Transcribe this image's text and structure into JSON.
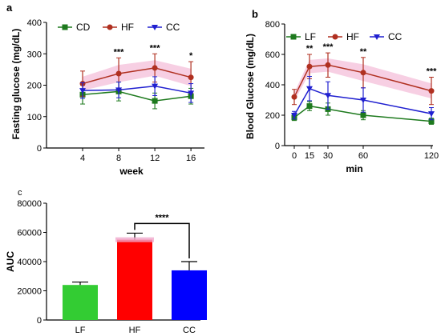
{
  "colors": {
    "CD": "#1e7a1e",
    "LF": "#1e7a1e",
    "HF": "#b03020",
    "CC": "#2020d0",
    "HF_band": "#f0a8cc",
    "bar_LF": "#33cc33",
    "bar_HF": "#ff0000",
    "bar_CC": "#0000ff"
  },
  "chart_data": [
    {
      "panel": "a",
      "type": "line",
      "xlabel": "week",
      "ylabel": "Fasting glucose (mg/dL)",
      "x": [
        4,
        8,
        12,
        16
      ],
      "xlim": [
        0,
        17.5
      ],
      "ylim": [
        0,
        400
      ],
      "yticks": [
        0,
        100,
        200,
        300,
        400
      ],
      "legend": "top-left",
      "series": [
        {
          "name": "CD",
          "values": [
            170,
            180,
            150,
            165
          ],
          "err": [
            30,
            30,
            25,
            25
          ]
        },
        {
          "name": "HF",
          "values": [
            205,
            237,
            255,
            225
          ],
          "err": [
            40,
            50,
            45,
            50
          ]
        },
        {
          "name": "CC",
          "values": [
            183,
            185,
            197,
            175
          ],
          "err": [
            25,
            25,
            30,
            30
          ]
        }
      ],
      "annotations": [
        {
          "x": 8,
          "text": "***"
        },
        {
          "x": 12,
          "text": "***"
        },
        {
          "x": 16,
          "text": "*"
        }
      ]
    },
    {
      "panel": "b",
      "type": "line",
      "xlabel": "min",
      "ylabel": "Blood Glucose (mg/dL)",
      "x": [
        0,
        15,
        30,
        60,
        120
      ],
      "xticks": [
        0,
        15,
        30,
        60,
        120
      ],
      "ylim": [
        0,
        800
      ],
      "yticks": [
        0,
        200,
        400,
        600,
        800
      ],
      "legend": "top-left",
      "series": [
        {
          "name": "LF",
          "values": [
            185,
            260,
            240,
            200,
            160
          ],
          "err": [
            20,
            30,
            40,
            30,
            20
          ]
        },
        {
          "name": "HF",
          "values": [
            320,
            520,
            530,
            480,
            360
          ],
          "err": [
            50,
            80,
            80,
            100,
            90
          ]
        },
        {
          "name": "CC",
          "values": [
            200,
            375,
            330,
            300,
            210
          ],
          "err": [
            25,
            80,
            90,
            80,
            40
          ]
        }
      ],
      "annotations": [
        {
          "x": 15,
          "text": "**"
        },
        {
          "x": 30,
          "text": "***"
        },
        {
          "x": 60,
          "text": "**"
        },
        {
          "x": 120,
          "text": "***"
        }
      ]
    },
    {
      "panel": "c",
      "type": "bar",
      "ylabel": "AUC",
      "categories": [
        "LF",
        "HF",
        "CC"
      ],
      "values": [
        24000,
        55000,
        34000
      ],
      "err": [
        2000,
        4500,
        6000
      ],
      "ylim": [
        0,
        80000
      ],
      "yticks": [
        0,
        20000,
        40000,
        60000,
        80000
      ],
      "annotations": [
        {
          "from": "HF",
          "to": "CC",
          "text": "****"
        }
      ]
    }
  ]
}
